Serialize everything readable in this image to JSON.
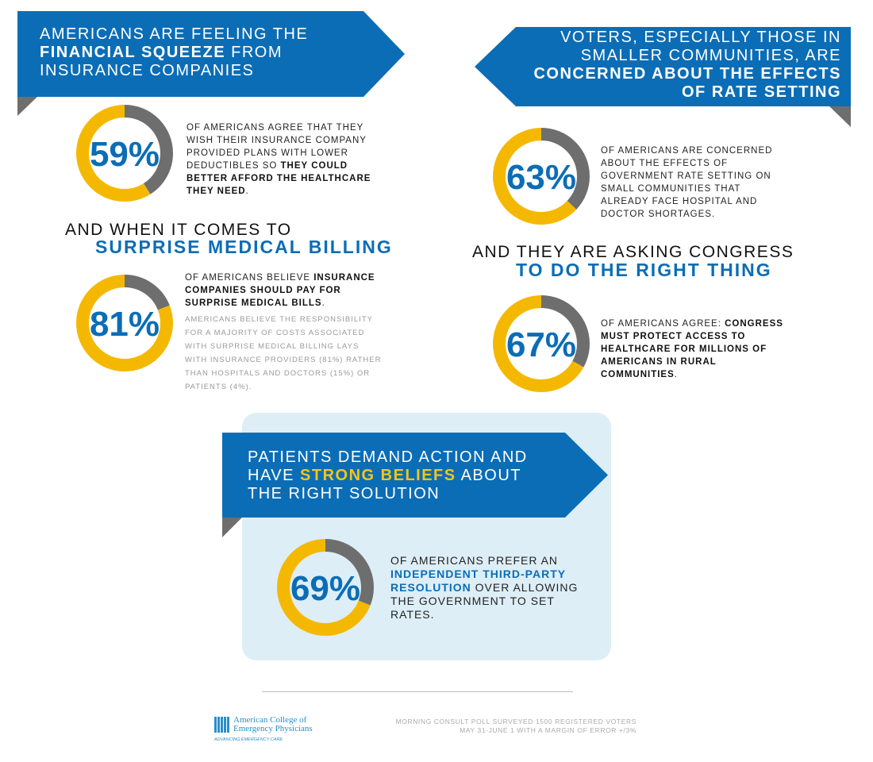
{
  "colors": {
    "blue": "#0b6db6",
    "yellow": "#f5b800",
    "gray": "#6e6e6e",
    "panel": "#ddeef7"
  },
  "section1": {
    "banner": {
      "line1": "AMERICANS ARE FEELING THE",
      "bold": "FINANCIAL SQUEEZE",
      "line2_rest": " FROM",
      "line3": "INSURANCE COMPANIES"
    },
    "stat": {
      "value": 59,
      "label": "59%",
      "text": "OF AMERICANS AGREE THAT THEY WISH THEIR INSURANCE COMPANY PROVIDED PLANS WITH LOWER DEDUCTIBLES SO ",
      "bold": "THEY COULD BETTER AFFORD THE HEALTHCARE THEY NEED",
      "end": "."
    }
  },
  "section2": {
    "heading": "AND WHEN IT COMES TO",
    "heading_accent": "SURPRISE MEDICAL BILLING",
    "stat": {
      "value": 81,
      "label": "81%",
      "text": "OF AMERICANS BELIEVE ",
      "bold": "INSURANCE COMPANIES SHOULD PAY FOR SURPRISE MEDICAL BILLS",
      "end": "."
    },
    "detail": "AMERICANS BELIEVE THE RESPONSIBILITY FOR A MAJORITY OF COSTS ASSOCIATED WITH SURPRISE MEDICAL BILLING LAYS WITH INSURANCE PROVIDERS (81%) RATHER THAN HOSPITALS AND DOCTORS (15%) OR PATIENTS (4%)."
  },
  "section3": {
    "banner": {
      "line1": "VOTERS, ESPECIALLY THOSE IN",
      "line2": "SMALLER COMMUNITIES, ARE",
      "bold1": "CONCERNED ABOUT THE EFFECTS",
      "bold2": "OF RATE SETTING"
    },
    "stat": {
      "value": 63,
      "label": "63%",
      "text": "OF AMERICANS ARE CONCERNED ABOUT THE EFFECTS OF GOVERNMENT RATE SETTING ON SMALL COMMUNITIES THAT ALREADY FACE HOSPITAL AND DOCTOR SHORTAGES."
    }
  },
  "section4": {
    "heading": "AND THEY ARE ASKING CONGRESS",
    "heading_accent": "TO DO THE RIGHT THING",
    "stat": {
      "value": 67,
      "label": "67%",
      "text": "OF AMERICANS AGREE: ",
      "bold": "CONGRESS MUST PROTECT ACCESS TO HEALTHCARE FOR MILLIONS OF AMERICANS IN RURAL COMMUNITIES",
      "end": "."
    }
  },
  "section5": {
    "banner": {
      "line1": "PATIENTS DEMAND ACTION AND",
      "line2_pre": "HAVE ",
      "accent": "STRONG BELIEFS",
      "line2_post": " ABOUT",
      "line3": "THE RIGHT SOLUTION"
    },
    "stat": {
      "value": 69,
      "label": "69%",
      "pre": "OF AMERICANS PREFER AN ",
      "accent": "INDEPENDENT THIRD-PARTY RESOLUTION",
      "post": " OVER ALLOWING THE GOVERNMENT TO SET RATES."
    }
  },
  "footer": {
    "logo_line1": "American College of",
    "logo_line2": "Emergency Physicians",
    "logo_tagline": "ADVANCING EMERGENCY CARE",
    "source1": "MORNING CONSULT POLL SURVEYED 1500 REGISTERED VOTERS",
    "source2": "MAY 31-JUNE 1 WITH A MARGIN OF ERROR +/3%"
  }
}
